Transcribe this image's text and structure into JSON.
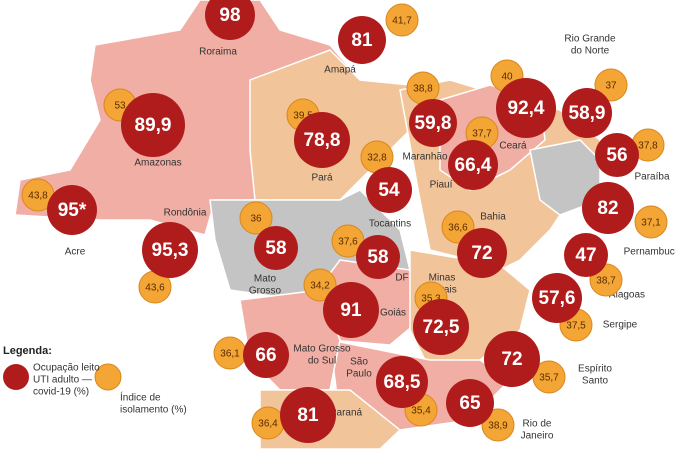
{
  "legend": {
    "title": "Legenda:",
    "occupancy": [
      "Ocupação leito",
      "UTI adulto —",
      "covid-19 (%)"
    ],
    "isolation": [
      "Índice de",
      "isolamento (%)"
    ]
  },
  "states": [
    {
      "name": [
        "Roraima"
      ],
      "occupancy": "98",
      "isolation": null
    },
    {
      "name": [
        "Amapá"
      ],
      "occupancy": "81",
      "isolation": "41,7"
    },
    {
      "name": [
        "Amazonas"
      ],
      "occupancy": "89,9",
      "isolation": "53"
    },
    {
      "name": [
        "Acre"
      ],
      "occupancy": "95*",
      "isolation": "43,8"
    },
    {
      "name": [
        "Rondônia"
      ],
      "occupancy": "95,3",
      "isolation": "43,6"
    },
    {
      "name": [
        "Pará"
      ],
      "occupancy": "78,8",
      "isolation": "39,5"
    },
    {
      "name": [
        "Maranhão"
      ],
      "occupancy": "59,8",
      "isolation": "38,8"
    },
    {
      "name": [
        "Tocantins"
      ],
      "occupancy": "54",
      "isolation": "32,8"
    },
    {
      "name": [
        "Piauí"
      ],
      "occupancy": "66,4",
      "isolation": "37,7"
    },
    {
      "name": [
        "Ceará"
      ],
      "occupancy": "92,4",
      "isolation": "40"
    },
    {
      "name": [
        "Rio Grande",
        "do Norte"
      ],
      "occupancy": "58,9",
      "isolation": "37"
    },
    {
      "name": [
        "Paraíba"
      ],
      "occupancy": "56",
      "isolation": "37,8"
    },
    {
      "name": [
        "Pernambuco"
      ],
      "occupancy": "82",
      "isolation": "37,1"
    },
    {
      "name": [
        "Alagoas"
      ],
      "occupancy": "47",
      "isolation": "38,7"
    },
    {
      "name": [
        "Sergipe"
      ],
      "occupancy": "57,6",
      "isolation": "37,5"
    },
    {
      "name": [
        "Bahia"
      ],
      "occupancy": "72",
      "isolation": "36,6"
    },
    {
      "name": [
        "Mato",
        "Grosso"
      ],
      "occupancy": "58",
      "isolation": "36"
    },
    {
      "name": [
        "DF"
      ],
      "occupancy": "58",
      "isolation": "37,6"
    },
    {
      "name": [
        "Goiás"
      ],
      "occupancy": "91",
      "isolation": "34,2"
    },
    {
      "name": [
        "Minas",
        "Gerais"
      ],
      "occupancy": "72,5",
      "isolation": "35,3"
    },
    {
      "name": [
        "Mato Grosso",
        "do Sul"
      ],
      "occupancy": "66",
      "isolation": "36,1"
    },
    {
      "name": [
        "São",
        "Paulo"
      ],
      "occupancy": "68,5",
      "isolation": "35,4"
    },
    {
      "name": [
        "Espírito",
        "Santo"
      ],
      "occupancy": "72",
      "isolation": "35,7"
    },
    {
      "name": [
        "Rio de",
        "Janeiro"
      ],
      "occupancy": "65",
      "isolation": "38,9"
    },
    {
      "name": [
        "Paraná"
      ],
      "occupancy": "81",
      "isolation": "36,4"
    }
  ]
}
